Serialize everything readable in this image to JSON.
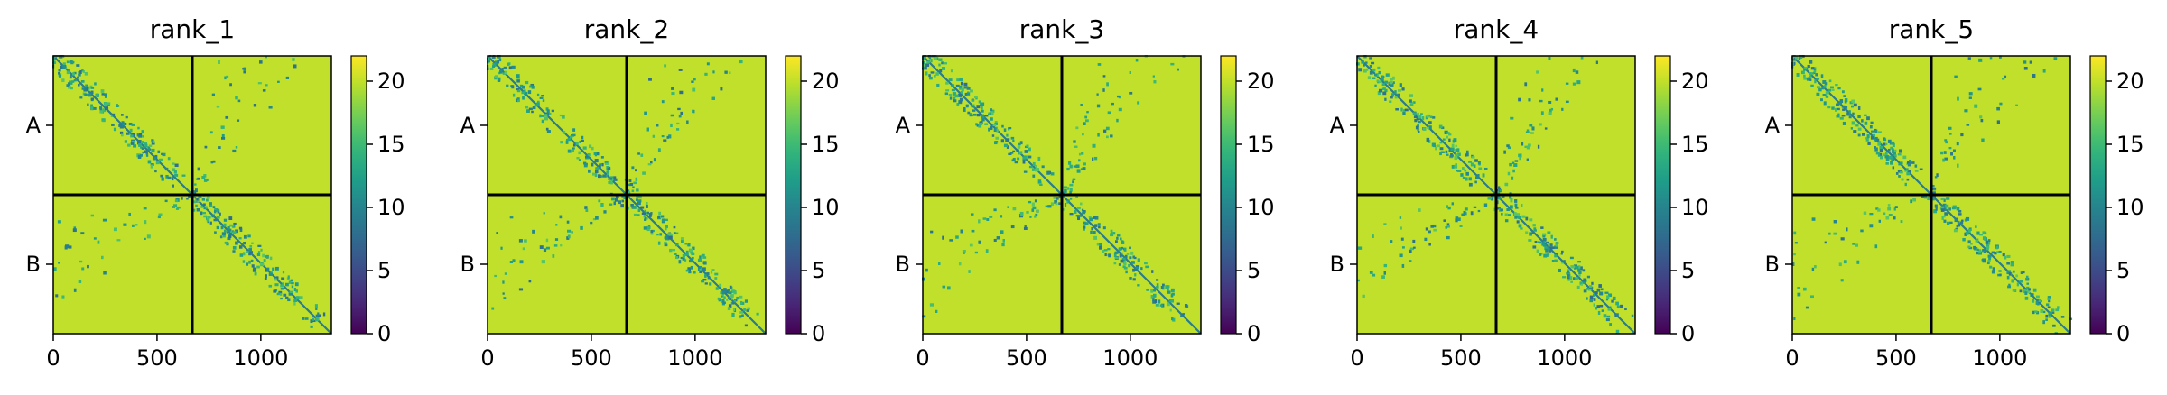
{
  "figure": {
    "panel_count": 5,
    "colormap": "viridis",
    "background": "#ffffff"
  },
  "chart_data": [
    {
      "type": "heatmap",
      "title": "rank_1",
      "x_ticks": [
        0,
        500,
        1000
      ],
      "xlim": [
        0,
        1340
      ],
      "y_ticks": [
        "A",
        "B"
      ],
      "chain_boundary": 670,
      "clim": [
        0,
        22
      ],
      "colorbar_ticks": [
        0,
        5,
        10,
        15,
        20
      ],
      "mean_value": 20
    },
    {
      "type": "heatmap",
      "title": "rank_2",
      "x_ticks": [
        0,
        500,
        1000
      ],
      "xlim": [
        0,
        1340
      ],
      "y_ticks": [
        "A",
        "B"
      ],
      "chain_boundary": 670,
      "clim": [
        0,
        22
      ],
      "colorbar_ticks": [
        0,
        5,
        10,
        15,
        20
      ],
      "mean_value": 20
    },
    {
      "type": "heatmap",
      "title": "rank_3",
      "x_ticks": [
        0,
        500,
        1000
      ],
      "xlim": [
        0,
        1340
      ],
      "y_ticks": [
        "A",
        "B"
      ],
      "chain_boundary": 670,
      "clim": [
        0,
        22
      ],
      "colorbar_ticks": [
        0,
        5,
        10,
        15,
        20
      ],
      "mean_value": 20
    },
    {
      "type": "heatmap",
      "title": "rank_4",
      "x_ticks": [
        0,
        500,
        1000
      ],
      "xlim": [
        0,
        1340
      ],
      "y_ticks": [
        "A",
        "B"
      ],
      "chain_boundary": 670,
      "clim": [
        0,
        22
      ],
      "colorbar_ticks": [
        0,
        5,
        10,
        15,
        20
      ],
      "mean_value": 20
    },
    {
      "type": "heatmap",
      "title": "rank_5",
      "x_ticks": [
        0,
        500,
        1000
      ],
      "xlim": [
        0,
        1340
      ],
      "y_ticks": [
        "A",
        "B"
      ],
      "chain_boundary": 670,
      "clim": [
        0,
        22
      ],
      "colorbar_ticks": [
        0,
        5,
        10,
        15,
        20
      ],
      "mean_value": 20
    }
  ]
}
